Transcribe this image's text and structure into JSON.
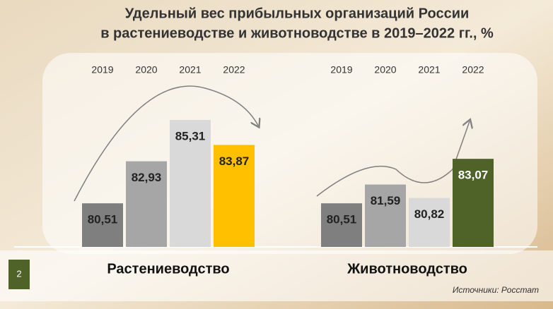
{
  "title": [
    "Удельный вес прибыльных организаций России",
    "в растениеводстве и животноводстве в 2019–2022 гг., %"
  ],
  "page_number": "2",
  "source": "Источники:  Росстат",
  "chart_data": [
    {
      "type": "bar",
      "xlabel": "Растениеводство",
      "categories": [
        "2019",
        "2020",
        "2021",
        "2022"
      ],
      "values": [
        80.51,
        82.93,
        85.31,
        83.87
      ],
      "value_labels": [
        "80,51",
        "82,93",
        "85,31",
        "83,87"
      ],
      "colors": [
        "#7f7f7f",
        "#a6a6a6",
        "#d9d9d9",
        "#ffc000"
      ],
      "ylim": [
        78,
        86
      ]
    },
    {
      "type": "bar",
      "xlabel": "Животноводство",
      "categories": [
        "2019",
        "2020",
        "2021",
        "2022"
      ],
      "values": [
        80.51,
        81.59,
        80.82,
        83.07
      ],
      "value_labels": [
        "80,51",
        "81,59",
        "80,82",
        "83,07"
      ],
      "colors": [
        "#7f7f7f",
        "#a6a6a6",
        "#d9d9d9",
        "#4f6228"
      ],
      "ylim": [
        78,
        86
      ]
    }
  ]
}
